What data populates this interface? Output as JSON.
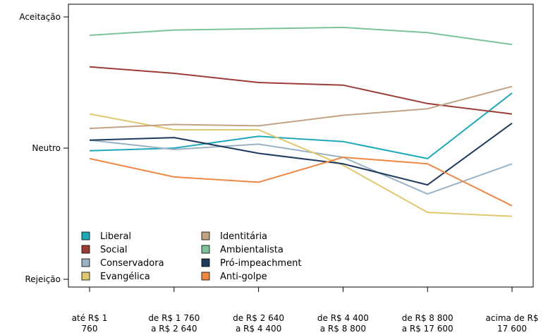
{
  "chart_data": {
    "type": "line",
    "title": "",
    "xlabel": "",
    "ylabel": "",
    "categories": [
      [
        "até R$ 1",
        "760"
      ],
      [
        "de R$ 1 760",
        "a R$ 2 640"
      ],
      [
        "de R$ 2 640",
        "a R$ 4 400"
      ],
      [
        "de R$ 4 400",
        "a R$ 8 800"
      ],
      [
        "de R$ 8 800",
        "a R$ 17 600"
      ],
      [
        "acima de R$",
        "17 600"
      ]
    ],
    "y_ticks": [
      {
        "value": -1,
        "label": "Rejeição"
      },
      {
        "value": 0,
        "label": "Neutro"
      },
      {
        "value": 1,
        "label": "Aceitação"
      }
    ],
    "ylim": [
      -1.05,
      1.05
    ],
    "grid": false,
    "legend_position": "bottom-left",
    "series": [
      {
        "name": "Liberal",
        "color": "#1fa8b8",
        "values": [
          -0.02,
          0,
          0.09,
          0.05,
          -0.08,
          0.42
        ]
      },
      {
        "name": "Social",
        "color": "#9b3d34",
        "values": [
          0.62,
          0.57,
          0.5,
          0.48,
          0.34,
          0.26
        ]
      },
      {
        "name": "Conservadora",
        "color": "#9ab2c4",
        "values": [
          0.06,
          -0.01,
          0.03,
          -0.07,
          -0.35,
          -0.12
        ]
      },
      {
        "name": "Evangélica",
        "color": "#e0c86e",
        "values": [
          0.26,
          0.14,
          0.14,
          -0.13,
          -0.49,
          -0.52
        ]
      },
      {
        "name": "Identitária",
        "color": "#c2a283",
        "values": [
          0.15,
          0.18,
          0.17,
          0.25,
          0.3,
          0.47
        ]
      },
      {
        "name": "Ambientalista",
        "color": "#7cc39a",
        "values": [
          0.86,
          0.9,
          0.91,
          0.92,
          0.88,
          0.79
        ]
      },
      {
        "name": "Pró-impeachment",
        "color": "#1f3a5f",
        "values": [
          0.06,
          0.08,
          -0.04,
          -0.12,
          -0.28,
          0.19
        ]
      },
      {
        "name": "Anti-golpe",
        "color": "#ee8844",
        "values": [
          -0.08,
          -0.22,
          -0.26,
          -0.07,
          -0.12,
          -0.44
        ]
      }
    ]
  }
}
